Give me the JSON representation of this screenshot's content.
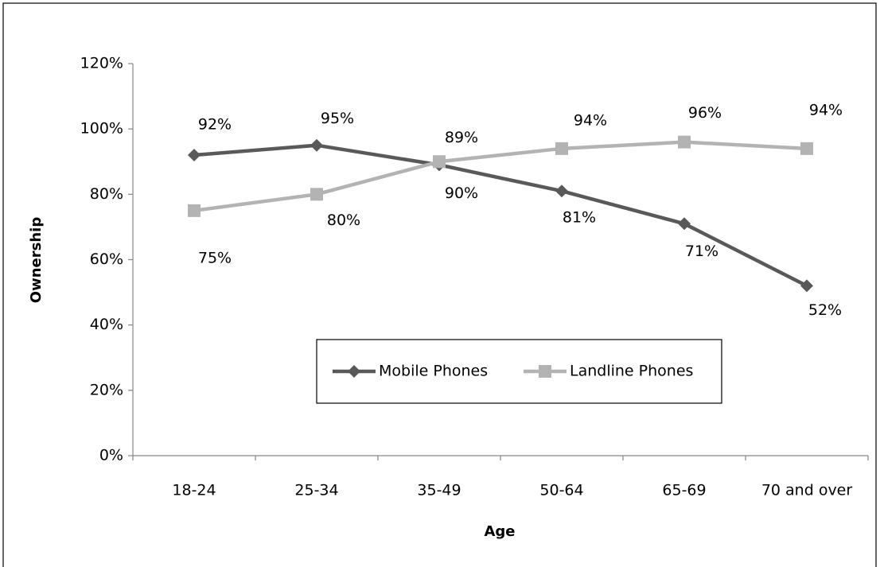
{
  "chart_data": {
    "type": "line",
    "x_label": "Age",
    "y_label": "Ownership",
    "categories": [
      "18-24",
      "25-34",
      "35-49",
      "50-64",
      "65-69",
      "70 and over"
    ],
    "series": [
      {
        "name": "Mobile Phones",
        "color": "#595959",
        "marker": "diamond",
        "values": [
          92,
          95,
          89,
          81,
          71,
          52
        ],
        "value_labels": [
          "92%",
          "95%",
          "89%",
          "81%",
          "71%",
          "52%"
        ]
      },
      {
        "name": "Landline Phones",
        "color": "#b3b3b3",
        "marker": "square",
        "values": [
          75,
          80,
          90,
          94,
          96,
          94
        ],
        "value_labels": [
          "75%",
          "80%",
          "90%",
          "94%",
          "96%",
          "94%"
        ]
      }
    ],
    "ylim": [
      0,
      120
    ],
    "yticks": [
      {
        "value": 0,
        "label": "0%"
      },
      {
        "value": 20,
        "label": "20%"
      },
      {
        "value": 40,
        "label": "40%"
      },
      {
        "value": 60,
        "label": "60%"
      },
      {
        "value": 80,
        "label": "80%"
      },
      {
        "value": 100,
        "label": "100%"
      },
      {
        "value": 120,
        "label": "120%"
      }
    ],
    "grid": false
  }
}
